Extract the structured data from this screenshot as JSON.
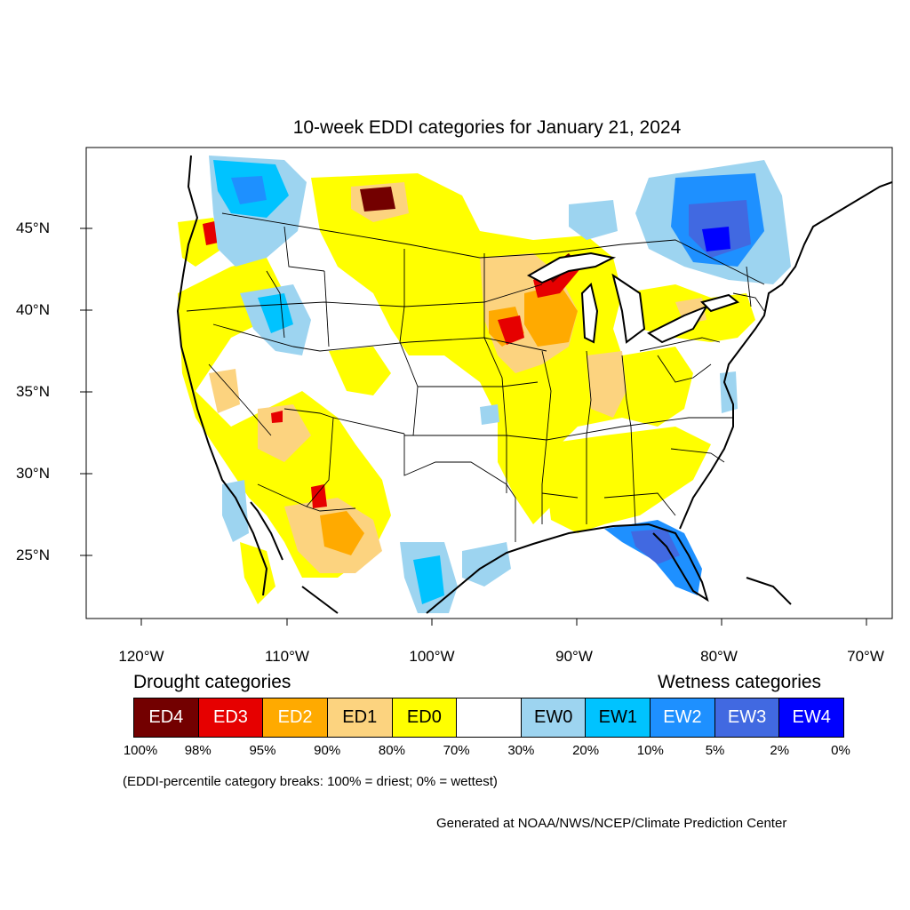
{
  "title": "10-week EDDI categories for January 21, 2024",
  "axes": {
    "lat_labels": [
      "45°N",
      "40°N",
      "35°N",
      "30°N",
      "25°N"
    ],
    "lon_labels": [
      "120°W",
      "110°W",
      "100°W",
      "90°W",
      "80°W",
      "70°W"
    ]
  },
  "legend": {
    "drought_heading": "Drought categories",
    "wetness_heading": "Wetness categories",
    "categories": [
      {
        "label": "ED4",
        "color": "#730000",
        "text_color": "#ffffff"
      },
      {
        "label": "ED3",
        "color": "#e60000",
        "text_color": "#ffffff"
      },
      {
        "label": "ED2",
        "color": "#ffaa00",
        "text_color": "#ffffff"
      },
      {
        "label": "ED1",
        "color": "#fcd37f",
        "text_color": "#000000"
      },
      {
        "label": "ED0",
        "color": "#ffff00",
        "text_color": "#000000"
      },
      {
        "label": "",
        "color": "#ffffff",
        "text_color": "#000000"
      },
      {
        "label": "EW0",
        "color": "#9dd4f0",
        "text_color": "#000000"
      },
      {
        "label": "EW1",
        "color": "#00c3ff",
        "text_color": "#000000"
      },
      {
        "label": "EW2",
        "color": "#1e90ff",
        "text_color": "#ffffff"
      },
      {
        "label": "EW3",
        "color": "#4169e1",
        "text_color": "#ffffff"
      },
      {
        "label": "EW4",
        "color": "#0000ff",
        "text_color": "#ffffff"
      }
    ],
    "percentiles": [
      "100%",
      "98%",
      "95%",
      "90%",
      "80%",
      "70%",
      "30%",
      "20%",
      "10%",
      "5%",
      "2%",
      "0%"
    ]
  },
  "note": "(EDDI-percentile category breaks: 100% = driest; 0% = wettest)",
  "credit": "Generated at NOAA/NWS/NCEP/Climate Prediction Center"
}
